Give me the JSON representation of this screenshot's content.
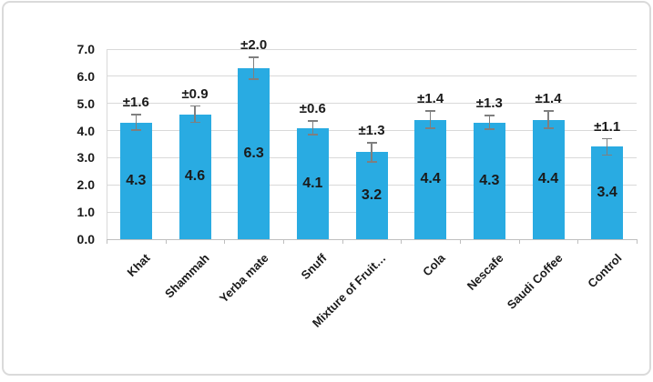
{
  "chart_data": {
    "type": "bar",
    "title": "",
    "xlabel": "",
    "ylabel": "",
    "categories": [
      "Khat",
      "Shammah",
      "Yerba mate",
      "Snuff",
      "Mixture of Fruit…",
      "Cola",
      "Nescafe",
      "Saudi Coffee",
      "Control"
    ],
    "values": [
      4.3,
      4.6,
      6.3,
      4.1,
      3.2,
      4.4,
      4.3,
      4.4,
      3.4
    ],
    "value_labels": [
      "4.3",
      "4.6",
      "6.3",
      "4.1",
      "3.2",
      "4.4",
      "4.3",
      "4.4",
      "3.4"
    ],
    "error_labels": [
      "±1.6",
      "±0.9",
      "±2.0",
      "±0.6",
      "±1.3",
      "±1.4",
      "±1.3",
      "±1.4",
      "±1.1"
    ],
    "display_errors": [
      0.28,
      0.3,
      0.4,
      0.25,
      0.35,
      0.32,
      0.25,
      0.32,
      0.3
    ],
    "ylim": [
      0,
      7
    ],
    "ytick_step": 1,
    "ytick_labels": [
      "0.0",
      "1.0",
      "2.0",
      "3.0",
      "4.0",
      "5.0",
      "6.0",
      "7.0"
    ],
    "grid": true,
    "legend": "none",
    "value_label_position": "inside-center",
    "colors": {
      "bar": "#29ABE2",
      "error_bar": "#7F7F7F",
      "gridline": "#D9D9D9",
      "axis": "#BFBFBF",
      "text": "#1A1A1A"
    }
  }
}
